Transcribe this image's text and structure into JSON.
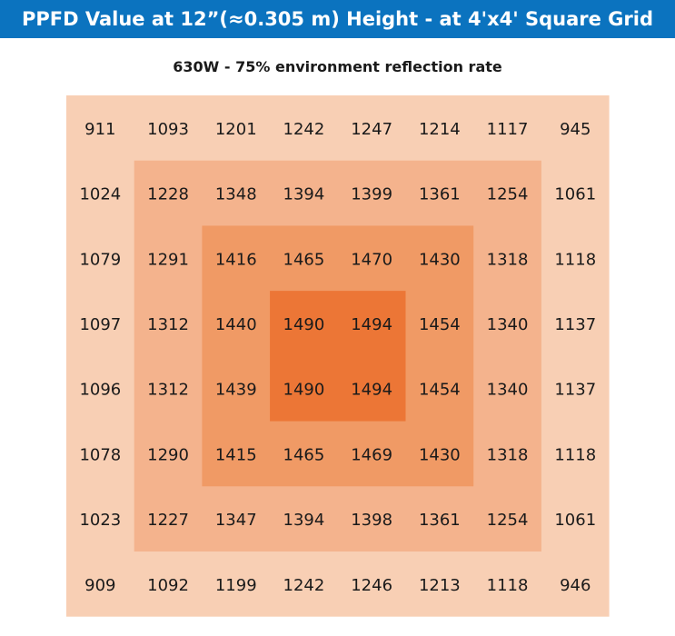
{
  "header": {
    "title": "PPFD Value at 12”(≈0.305 m) Height - at 4'x4' Square Grid",
    "subtitle": "630W - 75% environment reflection rate"
  },
  "colors": {
    "title_bar": "#0b73bf",
    "ring_outer": "#f8cfb4",
    "ring_2": "#f4b38d",
    "ring_3": "#f09a65",
    "ring_center": "#ec7636",
    "value_text": "#1a1a1a"
  },
  "chart_data": {
    "type": "heatmap",
    "title": "PPFD Value at 12”(≈0.305 m) Height - at 4'x4' Square Grid",
    "subtitle": "630W - 75% environment reflection rate",
    "rows": 8,
    "cols": 8,
    "values": [
      [
        911,
        1093,
        1201,
        1242,
        1247,
        1214,
        1117,
        945
      ],
      [
        1024,
        1228,
        1348,
        1394,
        1399,
        1361,
        1254,
        1061
      ],
      [
        1079,
        1291,
        1416,
        1465,
        1470,
        1430,
        1318,
        1118
      ],
      [
        1097,
        1312,
        1440,
        1490,
        1494,
        1454,
        1340,
        1137
      ],
      [
        1096,
        1312,
        1439,
        1490,
        1494,
        1454,
        1340,
        1137
      ],
      [
        1078,
        1290,
        1415,
        1465,
        1469,
        1430,
        1318,
        1118
      ],
      [
        1023,
        1227,
        1347,
        1394,
        1398,
        1361,
        1254,
        1061
      ],
      [
        909,
        1092,
        1199,
        1242,
        1246,
        1213,
        1118,
        946
      ]
    ]
  }
}
